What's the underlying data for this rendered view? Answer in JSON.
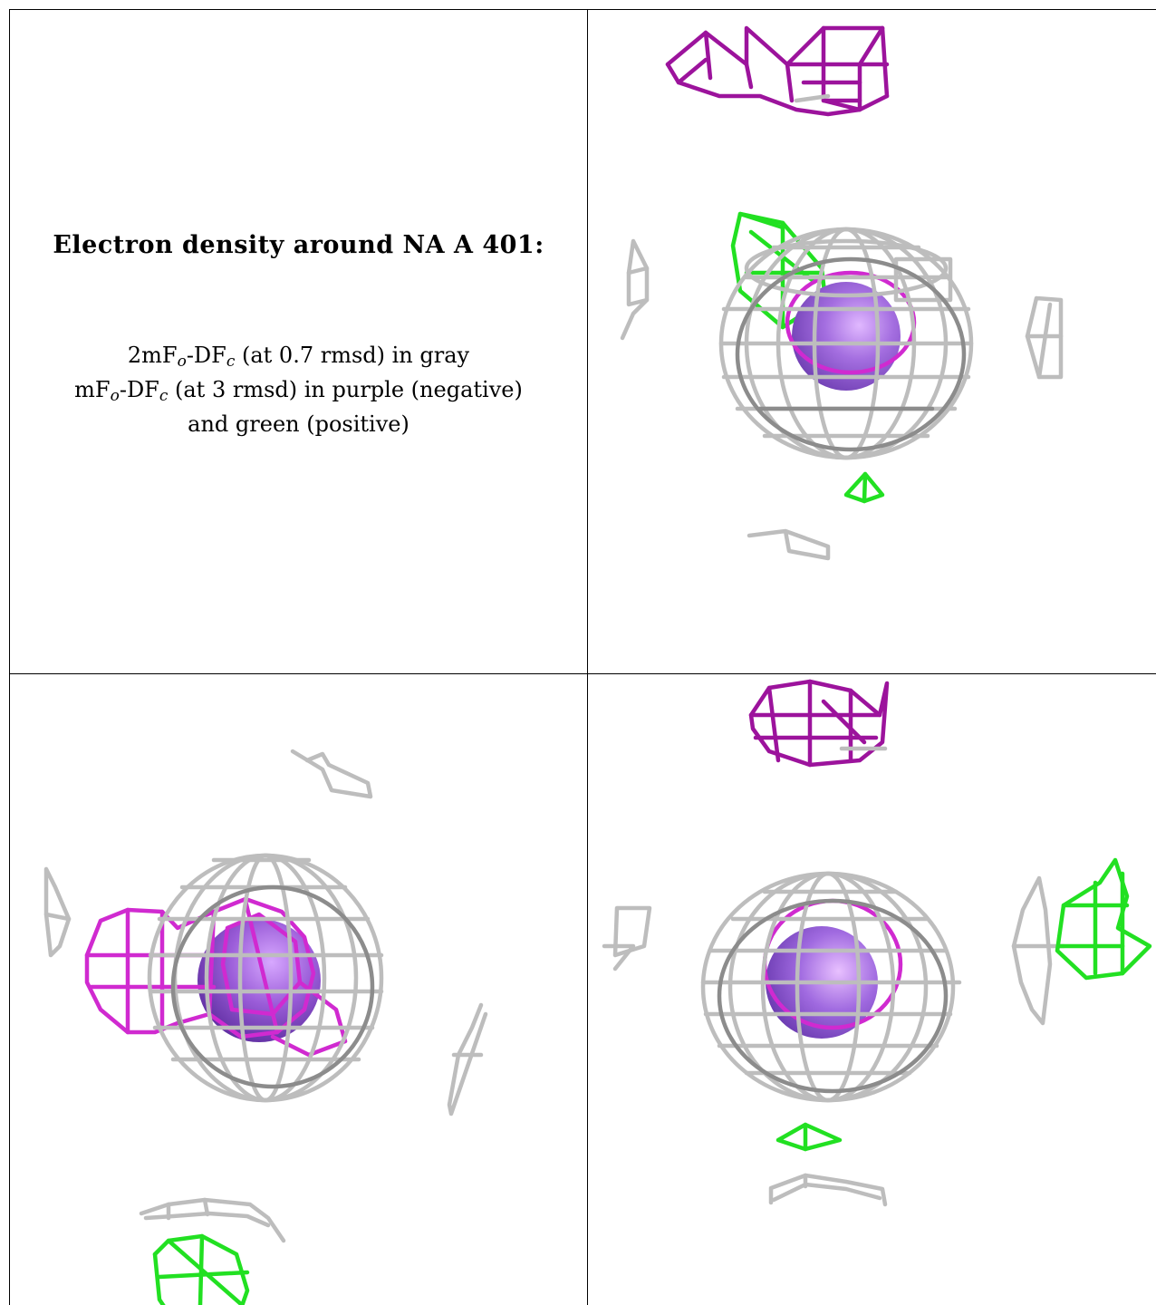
{
  "caption": {
    "title": "Electron density around NA A 401:",
    "line1": {
      "prefix": "2mF",
      "sub1": "o",
      "mid": "-DF",
      "sub2": "c",
      "suffix": " (at 0.7 rmsd) in gray"
    },
    "line2": {
      "prefix": "mF",
      "sub1": "o",
      "mid": "-DF",
      "sub2": "c",
      "suffix": " (at 3 rmsd) in purple (negative)"
    },
    "line3": "and green (positive)"
  },
  "colors": {
    "gray_mesh": "#bdbdbd",
    "negative_mesh": "#d02ad0",
    "positive_mesh": "#22e022",
    "sodium_sphere": "#9a60d8",
    "background": "#ffffff",
    "grid_lines": "#000000"
  },
  "panels": [
    {
      "id": "view-top-right",
      "contains": [
        "gray-mesh",
        "negative-mesh",
        "positive-mesh",
        "sodium-sphere"
      ]
    },
    {
      "id": "view-bottom-left",
      "contains": [
        "gray-mesh",
        "negative-mesh",
        "positive-mesh",
        "sodium-sphere"
      ]
    },
    {
      "id": "view-bottom-right",
      "contains": [
        "gray-mesh",
        "negative-mesh",
        "positive-mesh",
        "sodium-sphere"
      ]
    }
  ]
}
